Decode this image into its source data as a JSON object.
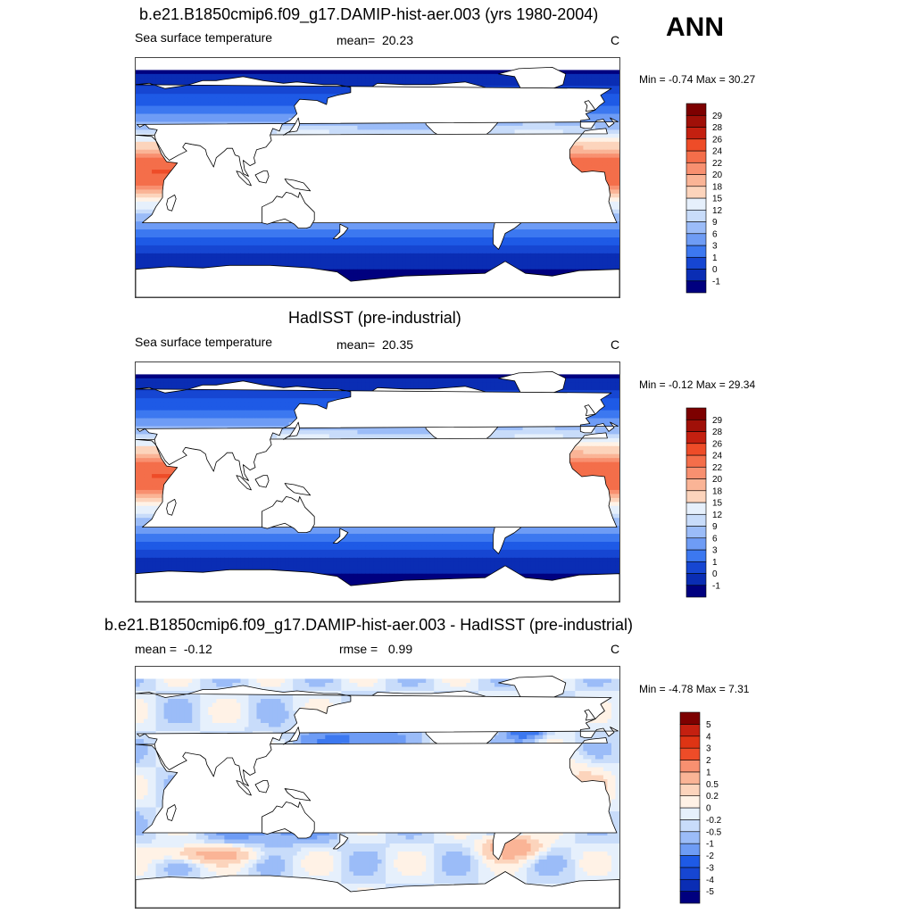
{
  "page": {
    "season_label": "ANN"
  },
  "colors": {
    "sst_scale": [
      "#00007f",
      "#0a2db4",
      "#1646d2",
      "#1e5ae6",
      "#3c78f0",
      "#6e9cf5",
      "#9bbcf8",
      "#c8dcfa",
      "#e6f0fc",
      "#fff2e6",
      "#fcd4bc",
      "#fab496",
      "#f89070",
      "#f46e4a",
      "#ee4c28",
      "#de3414",
      "#c42010",
      "#a01008",
      "#7d0000"
    ],
    "diff_scale": [
      "#00007f",
      "#0a2db4",
      "#1646d2",
      "#1e5ae6",
      "#3c78f0",
      "#6e9cf5",
      "#9bbcf8",
      "#c8dcfa",
      "#e6f0fc",
      "#fff2e6",
      "#fcd4bc",
      "#fab496",
      "#f89070",
      "#f46e4a",
      "#ee4c28",
      "#de3414",
      "#c42010",
      "#7d0000"
    ],
    "land": "#ffffff",
    "coast": "#000000"
  },
  "chart_data": [
    {
      "type": "heatmap",
      "title": "b.e21.B1850cmip6.f09_g17.DAMIP-hist-aer.003 (yrs 1980-2004)",
      "left_label": "Sea surface temperature",
      "center_label": "mean=",
      "center_value": "20.23",
      "units": "C",
      "min_label": "Min =",
      "min_value": "-0.74",
      "max_label": "Max =",
      "max_value": "30.27",
      "min_text": "-0.74",
      "max_text": "30.27",
      "field": "model",
      "colorbar_levels": [
        "-1",
        "0",
        "1",
        "3",
        "6",
        "9",
        "12",
        "15",
        "18",
        "20",
        "22",
        "24",
        "26",
        "28",
        "29"
      ]
    },
    {
      "type": "heatmap",
      "title": "HadISST (pre-industrial)",
      "left_label": "Sea surface temperature",
      "center_label": "mean=",
      "center_value": "20.35",
      "units": "C",
      "min_label": "Min =",
      "min_value": "-0.12",
      "max_label": "Max =",
      "max_value": "29.34",
      "field": "obs",
      "colorbar_levels": [
        "-1",
        "0",
        "1",
        "3",
        "6",
        "9",
        "12",
        "15",
        "18",
        "20",
        "22",
        "24",
        "26",
        "28",
        "29"
      ]
    },
    {
      "type": "heatmap",
      "title": "b.e21.B1850cmip6.f09_g17.DAMIP-hist-aer.003 - HadISST (pre-industrial)",
      "left_label": "mean =",
      "left_value": "-0.12",
      "center_label": "rmse =",
      "center_value": "0.99",
      "units": "C",
      "min_label": "Min =",
      "min_value": "-4.78",
      "max_label": "Max =",
      "max_value": "7.31",
      "field": "diff",
      "colorbar_levels": [
        "-5",
        "-4",
        "-3",
        "-2",
        "-1",
        "-0.5",
        "-0.2",
        "0",
        "0.2",
        "0.5",
        "1",
        "2",
        "3",
        "4",
        "5"
      ]
    }
  ]
}
